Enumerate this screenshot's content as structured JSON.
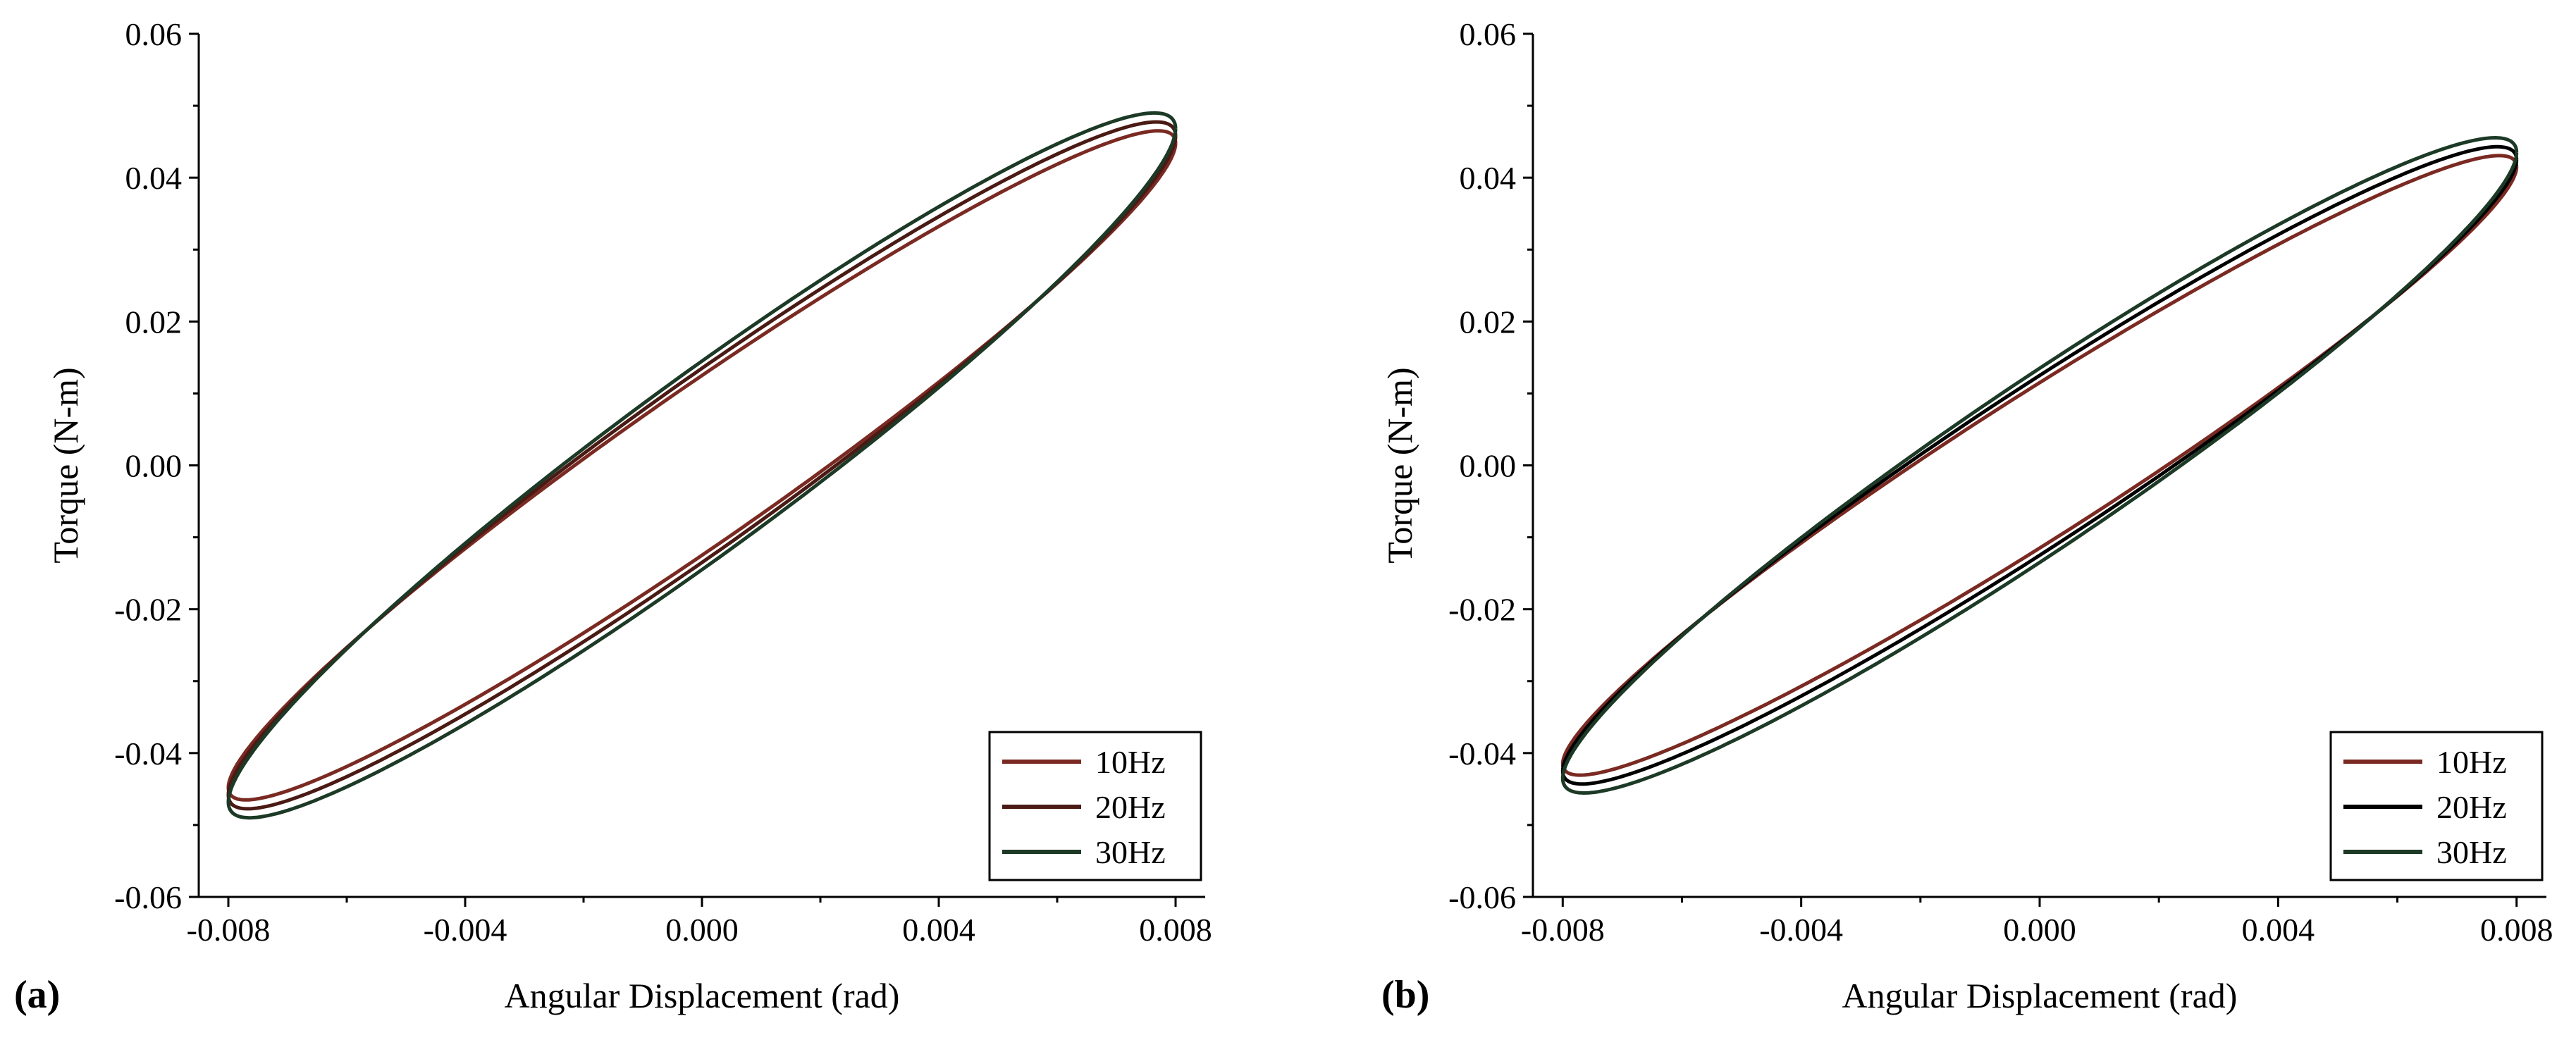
{
  "chart_data": [
    {
      "type": "line",
      "panel_label": "(a)",
      "xlabel": "Angular Displacement (rad)",
      "ylabel": "Torque (N-m)",
      "xlim": [
        -0.0085,
        0.0085
      ],
      "ylim": [
        -0.06,
        0.06
      ],
      "xticks": [
        "-0.008",
        "-0.004",
        "0.000",
        "0.004",
        "0.008"
      ],
      "yticks": [
        "0.06",
        "0.04",
        "0.02",
        "0.00",
        "-0.02",
        "-0.04",
        "-0.06"
      ],
      "legend_position": "bottom-right",
      "series": [
        {
          "name": "10Hz",
          "color": "#7a2a22",
          "amplitude_rad": 0.008,
          "peak_torque": 0.0448,
          "zero_disp_torque": 0.0125
        },
        {
          "name": "20Hz",
          "color": "#4a1a14",
          "amplitude_rad": 0.008,
          "peak_torque": 0.0458,
          "zero_disp_torque": 0.0135
        },
        {
          "name": "30Hz",
          "color": "#1c3a26",
          "amplitude_rad": 0.008,
          "peak_torque": 0.0468,
          "zero_disp_torque": 0.0145
        }
      ]
    },
    {
      "type": "line",
      "panel_label": "(b)",
      "xlabel": "Angular Displacement (rad)",
      "ylabel": "Torque (N-m)",
      "xlim": [
        -0.0085,
        0.0085
      ],
      "ylim": [
        -0.06,
        0.06
      ],
      "xticks": [
        "-0.008",
        "-0.004",
        "0.000",
        "0.004",
        "0.008"
      ],
      "yticks": [
        "0.06",
        "0.04",
        "0.02",
        "0.00",
        "-0.02",
        "-0.04",
        "-0.06"
      ],
      "legend_position": "bottom-right",
      "series": [
        {
          "name": "10Hz",
          "color": "#7a2a22",
          "amplitude_rad": 0.008,
          "peak_torque": 0.0415,
          "zero_disp_torque": 0.0115
        },
        {
          "name": "20Hz",
          "color": "#000000",
          "amplitude_rad": 0.008,
          "peak_torque": 0.0425,
          "zero_disp_torque": 0.0125
        },
        {
          "name": "30Hz",
          "color": "#1c3a26",
          "amplitude_rad": 0.008,
          "peak_torque": 0.0435,
          "zero_disp_torque": 0.0135
        }
      ]
    }
  ]
}
